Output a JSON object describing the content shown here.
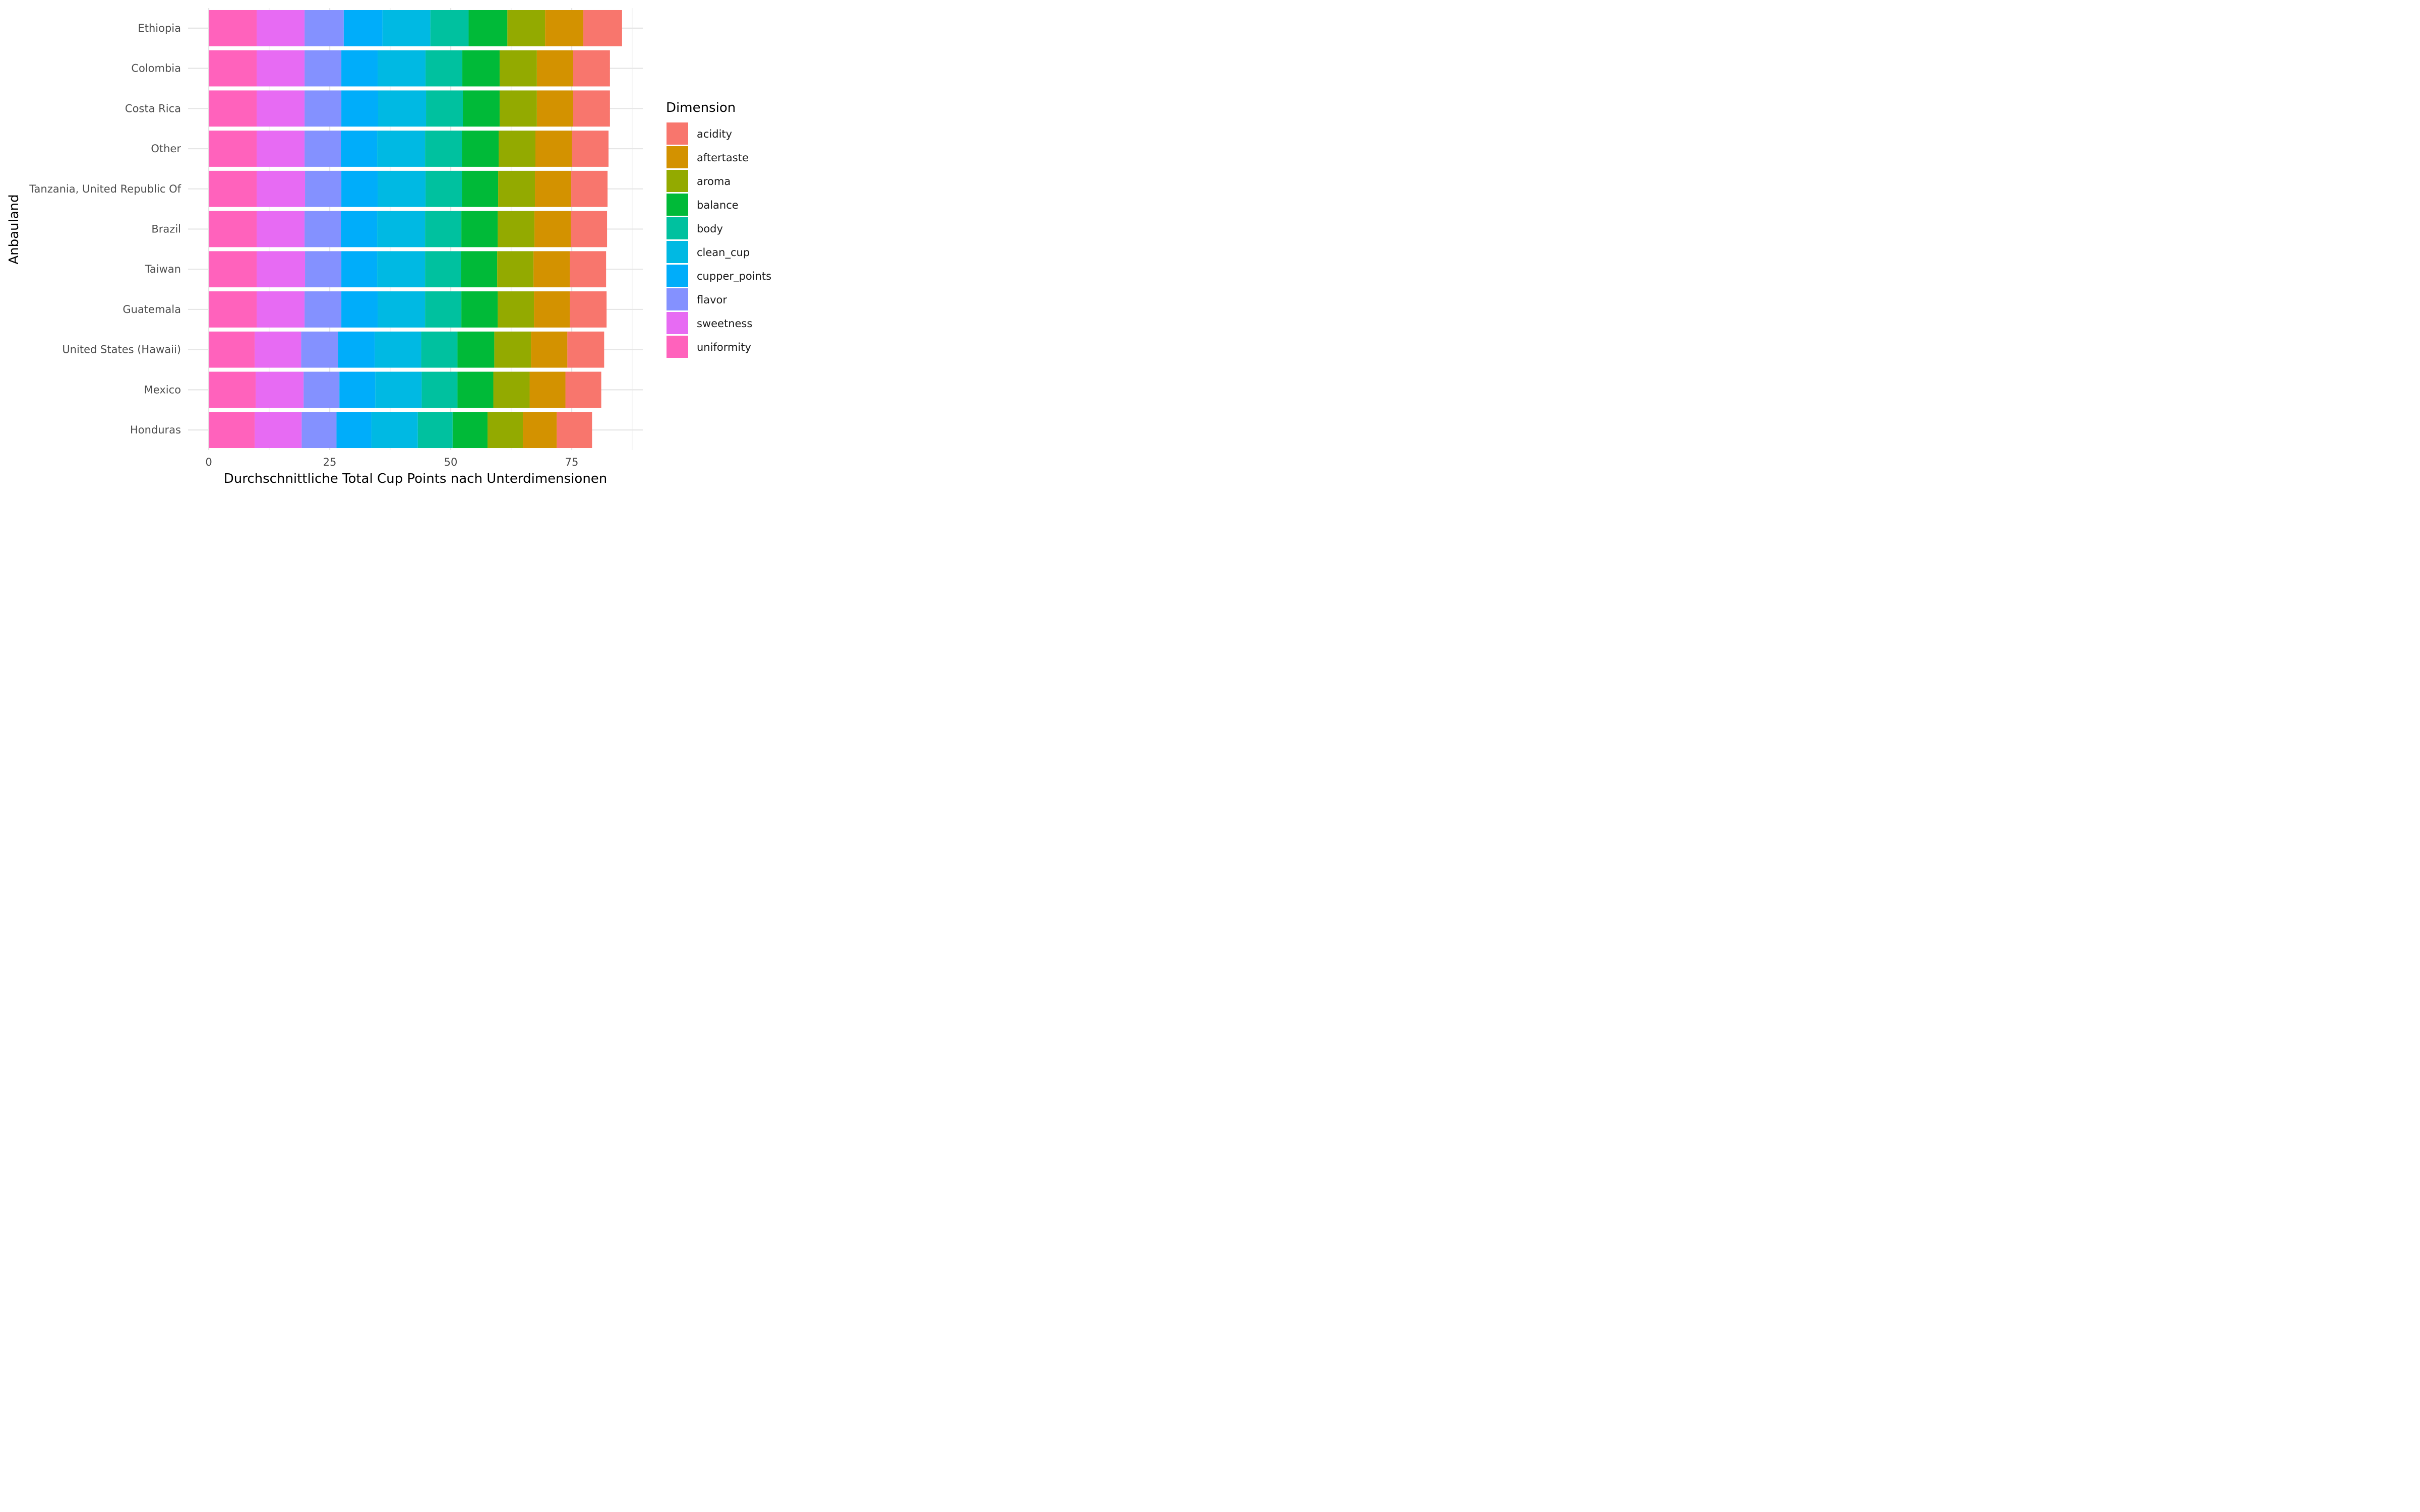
{
  "chart_data": {
    "type": "bar",
    "orientation": "horizontal",
    "stacked": true,
    "xlabel": "Durchschnittliche Total Cup Points nach Unterdimensionen",
    "ylabel": "Anbauland",
    "xlim": [
      0,
      90
    ],
    "x_ticks": [
      0,
      25,
      50,
      75
    ],
    "grid": true,
    "legend": {
      "title": "Dimension",
      "position": "right"
    },
    "categories": [
      "Ethiopia",
      "Colombia",
      "Costa Rica",
      "Other",
      "Tanzania, United Republic Of",
      "Brazil",
      "Taiwan",
      "Guatemala",
      "United States (Hawaii)",
      "Mexico",
      "Honduras"
    ],
    "stack_order": [
      "uniformity",
      "sweetness",
      "flavor",
      "cupper_points",
      "clean_cup",
      "body",
      "balance",
      "aroma",
      "aftertaste",
      "acidity"
    ],
    "series": [
      {
        "name": "acidity",
        "color": "#F8766D",
        "values": [
          8.0,
          7.6,
          7.6,
          7.6,
          7.5,
          7.5,
          7.5,
          7.6,
          7.6,
          7.4,
          7.3
        ]
      },
      {
        "name": "aftertaste",
        "color": "#D39200",
        "values": [
          7.9,
          7.5,
          7.5,
          7.5,
          7.5,
          7.5,
          7.5,
          7.4,
          7.5,
          7.4,
          7.0
        ]
      },
      {
        "name": "aroma",
        "color": "#93AA00",
        "values": [
          7.8,
          7.7,
          7.7,
          7.6,
          7.6,
          7.6,
          7.5,
          7.5,
          7.6,
          7.5,
          7.3
        ]
      },
      {
        "name": "balance",
        "color": "#00BA38",
        "values": [
          8.0,
          7.7,
          7.6,
          7.6,
          7.5,
          7.5,
          7.5,
          7.5,
          7.6,
          7.4,
          7.2
        ]
      },
      {
        "name": "body",
        "color": "#00C19F",
        "values": [
          7.9,
          7.6,
          7.6,
          7.6,
          7.5,
          7.5,
          7.4,
          7.5,
          7.5,
          7.4,
          7.2
        ]
      },
      {
        "name": "clean_cup",
        "color": "#00B9E3",
        "values": [
          9.9,
          9.9,
          9.9,
          9.9,
          9.9,
          9.9,
          9.9,
          9.8,
          9.6,
          9.6,
          9.6
        ]
      },
      {
        "name": "cupper_points",
        "color": "#00ADFA",
        "values": [
          8.0,
          7.5,
          7.6,
          7.5,
          7.5,
          7.5,
          7.4,
          7.5,
          7.6,
          7.4,
          7.2
        ]
      },
      {
        "name": "flavor",
        "color": "#8491FF",
        "values": [
          8.1,
          7.6,
          7.6,
          7.5,
          7.5,
          7.5,
          7.5,
          7.6,
          7.6,
          7.4,
          7.2
        ]
      },
      {
        "name": "sweetness",
        "color": "#E76BF3",
        "values": [
          9.9,
          9.9,
          9.9,
          9.9,
          10.0,
          9.9,
          10.0,
          9.9,
          9.6,
          9.9,
          9.7
        ]
      },
      {
        "name": "uniformity",
        "color": "#FF62BC",
        "values": [
          9.9,
          9.9,
          9.9,
          9.9,
          9.9,
          9.9,
          9.9,
          9.9,
          9.5,
          9.7,
          9.5
        ]
      }
    ]
  }
}
